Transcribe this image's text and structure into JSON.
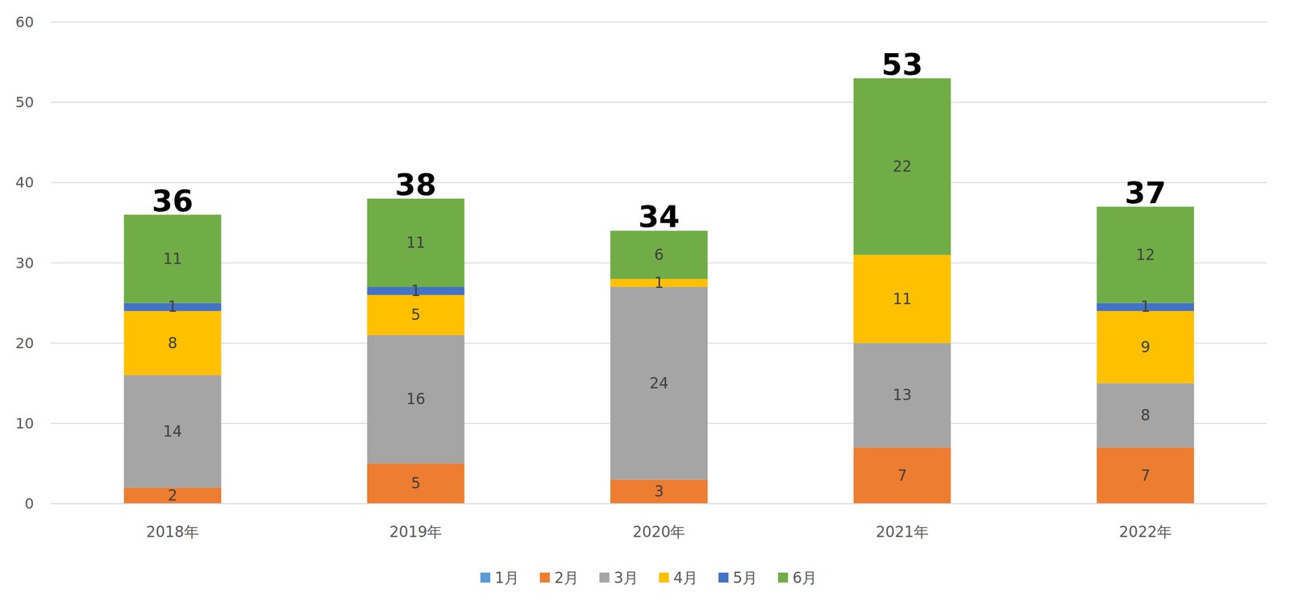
{
  "chart_data": {
    "type": "bar",
    "stacked": true,
    "data_labels": true,
    "grid": true,
    "legend": "bottom",
    "categories": [
      "2018年",
      "2019年",
      "2020年",
      "2021年",
      "2022年"
    ],
    "series": [
      {
        "name": "1月",
        "color": "#5b9bd5",
        "values": [
          null,
          null,
          null,
          null,
          null
        ]
      },
      {
        "name": "2月",
        "color": "#ed7d31",
        "values": [
          2,
          5,
          3,
          7,
          7
        ]
      },
      {
        "name": "3月",
        "color": "#a5a5a5",
        "values": [
          14,
          16,
          24,
          13,
          8
        ]
      },
      {
        "name": "4月",
        "color": "#ffc000",
        "values": [
          8,
          5,
          1,
          11,
          9
        ]
      },
      {
        "name": "5月",
        "color": "#4472c4",
        "values": [
          1,
          1,
          null,
          null,
          1
        ]
      },
      {
        "name": "6月",
        "color": "#70ad47",
        "values": [
          11,
          11,
          6,
          22,
          12
        ]
      }
    ],
    "totals": [
      36,
      38,
      34,
      53,
      37
    ],
    "ylim": [
      0,
      60
    ],
    "yticks": [
      0,
      10,
      20,
      30,
      40,
      50,
      60
    ]
  }
}
